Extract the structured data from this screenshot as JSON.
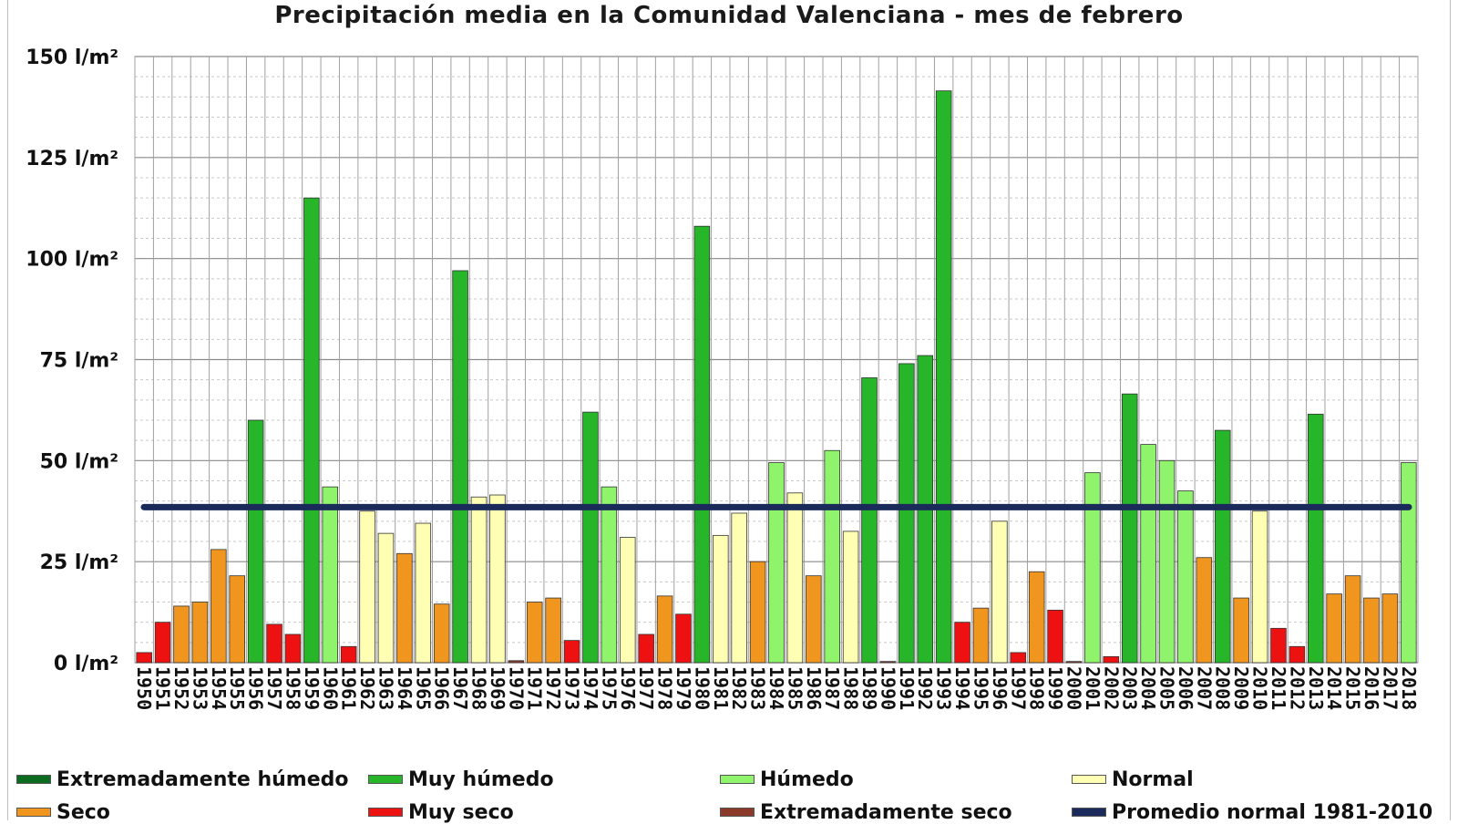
{
  "chart_data": {
    "type": "bar",
    "title": "Precipitación media en la Comunidad Valenciana - mes de febrero",
    "xlabel": "",
    "ylabel": "",
    "ylim": [
      0,
      150
    ],
    "yticks": [
      "0 l/m²",
      "25 l/m²",
      "50 l/m²",
      "75 l/m²",
      "100 l/m²",
      "125 l/m²",
      "150 l/m²"
    ],
    "grid": true,
    "categories": [
      "1950",
      "1951",
      "1952",
      "1953",
      "1954",
      "1955",
      "1956",
      "1957",
      "1958",
      "1959",
      "1960",
      "1961",
      "1962",
      "1963",
      "1964",
      "1965",
      "1966",
      "1967",
      "1968",
      "1969",
      "1970",
      "1971",
      "1972",
      "1973",
      "1974",
      "1975",
      "1976",
      "1977",
      "1978",
      "1979",
      "1980",
      "1981",
      "1982",
      "1983",
      "1984",
      "1985",
      "1986",
      "1987",
      "1988",
      "1989",
      "1990",
      "1991",
      "1992",
      "1993",
      "1994",
      "1995",
      "1996",
      "1997",
      "1998",
      "1999",
      "2000",
      "2001",
      "2002",
      "2003",
      "2004",
      "2005",
      "2006",
      "2007",
      "2008",
      "2009",
      "2010",
      "2011",
      "2012",
      "2013",
      "2014",
      "2015",
      "2016",
      "2017",
      "2018"
    ],
    "values": [
      2.5,
      10,
      14,
      15,
      28,
      21.5,
      60,
      9.5,
      7,
      115,
      43.5,
      4,
      37.5,
      32,
      27,
      34.5,
      14.5,
      97,
      41,
      41.5,
      0.5,
      15,
      16,
      5.5,
      62,
      43.5,
      31,
      7,
      16.5,
      12,
      108,
      31.5,
      37,
      25,
      49.5,
      42,
      21.5,
      52.5,
      32.5,
      70.5,
      0.3,
      74,
      76,
      141.5,
      10,
      13.5,
      35,
      2.5,
      22.5,
      13,
      0.3,
      47,
      1.5,
      66.5,
      54,
      50,
      42.5,
      26,
      57.5,
      16,
      37.5,
      8.5,
      4,
      61.5,
      17,
      21.5,
      16,
      17,
      49.5
    ],
    "classes": [
      "muy_seco",
      "muy_seco",
      "seco",
      "seco",
      "seco",
      "seco",
      "muy_humedo",
      "muy_seco",
      "muy_seco",
      "muy_humedo",
      "humedo",
      "muy_seco",
      "normal",
      "normal",
      "seco",
      "normal",
      "seco",
      "muy_humedo",
      "normal",
      "normal",
      "extremadamente_seco",
      "seco",
      "seco",
      "muy_seco",
      "muy_humedo",
      "humedo",
      "normal",
      "muy_seco",
      "seco",
      "muy_seco",
      "muy_humedo",
      "normal",
      "normal",
      "seco",
      "humedo",
      "normal",
      "seco",
      "humedo",
      "normal",
      "muy_humedo",
      "extremadamente_seco",
      "muy_humedo",
      "muy_humedo",
      "muy_humedo",
      "muy_seco",
      "seco",
      "normal",
      "muy_seco",
      "seco",
      "muy_seco",
      "extremadamente_seco",
      "humedo",
      "muy_seco",
      "muy_humedo",
      "humedo",
      "humedo",
      "humedo",
      "seco",
      "muy_humedo",
      "seco",
      "normal",
      "muy_seco",
      "muy_seco",
      "muy_humedo",
      "seco",
      "seco",
      "seco",
      "seco",
      "humedo"
    ],
    "class_colors": {
      "extremadamente_humedo": "#0b6b1f",
      "muy_humedo": "#27b52a",
      "humedo": "#8ff36b",
      "normal": "#ffffb3",
      "seco": "#f0961e",
      "muy_seco": "#ee1111",
      "extremadamente_seco": "#8b3a2a"
    },
    "reference_line": {
      "name": "Promedio normal 1981-2010",
      "value": 38.5,
      "color": "#1a2a5a"
    },
    "legend": [
      {
        "key": "extremadamente_humedo",
        "label": "Extremadamente húmedo",
        "color": "#0b6b1f"
      },
      {
        "key": "muy_humedo",
        "label": "Muy húmedo",
        "color": "#27b52a"
      },
      {
        "key": "humedo",
        "label": "Húmedo",
        "color": "#8ff36b"
      },
      {
        "key": "normal",
        "label": "Normal",
        "color": "#ffffb3"
      },
      {
        "key": "seco",
        "label": "Seco",
        "color": "#f0961e"
      },
      {
        "key": "muy_seco",
        "label": "Muy seco",
        "color": "#ee1111"
      },
      {
        "key": "extremadamente_seco",
        "label": "Extremadamente seco",
        "color": "#8b3a2a"
      },
      {
        "key": "promedio",
        "label": "Promedio normal 1981-2010",
        "color": "#1a2a5a"
      }
    ],
    "legend_position": "bottom"
  }
}
